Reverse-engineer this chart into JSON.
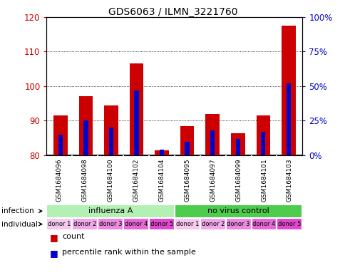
{
  "title": "GDS6063 / ILMN_3221760",
  "samples": [
    "GSM1684096",
    "GSM1684098",
    "GSM1684100",
    "GSM1684102",
    "GSM1684104",
    "GSM1684095",
    "GSM1684097",
    "GSM1684099",
    "GSM1684101",
    "GSM1684103"
  ],
  "red_values": [
    91.5,
    97.0,
    94.5,
    106.5,
    81.5,
    88.5,
    92.0,
    86.5,
    91.5,
    117.5
  ],
  "blue_values_pct": [
    15,
    25,
    20,
    47,
    4,
    10,
    18,
    12,
    17,
    52
  ],
  "ylim_left": [
    80,
    120
  ],
  "ylim_right": [
    0,
    100
  ],
  "yticks_left": [
    80,
    90,
    100,
    110,
    120
  ],
  "yticks_right": [
    0,
    25,
    50,
    75,
    100
  ],
  "ytick_labels_right": [
    "0%",
    "25%",
    "50%",
    "75%",
    "100%"
  ],
  "infection_groups": [
    {
      "label": "influenza A",
      "start": 0,
      "end": 5,
      "color": "#b3f0b3"
    },
    {
      "label": "no virus control",
      "start": 5,
      "end": 10,
      "color": "#4dcc4d"
    }
  ],
  "individual_labels": [
    "donor 1",
    "donor 2",
    "donor 3",
    "donor 4",
    "donor 5",
    "donor 1",
    "donor 2",
    "donor 3",
    "donor 4",
    "donor 5"
  ],
  "individual_colors": [
    "#f5c8f0",
    "#f0a8e8",
    "#eb88e0",
    "#e668d8",
    "#e048d0",
    "#f5c8f0",
    "#f0a8e8",
    "#eb88e0",
    "#e668d8",
    "#e048d0"
  ],
  "bar_color_red": "#cc0000",
  "bar_color_blue": "#0000cc",
  "bar_width": 0.55,
  "blue_bar_width": 0.18,
  "background_color": "#ffffff",
  "tick_color_left": "#cc0000",
  "tick_color_right": "#0000cc",
  "ybase": 80,
  "sample_box_color": "#cccccc",
  "left_label_infection": "infection",
  "left_label_individual": "individual"
}
